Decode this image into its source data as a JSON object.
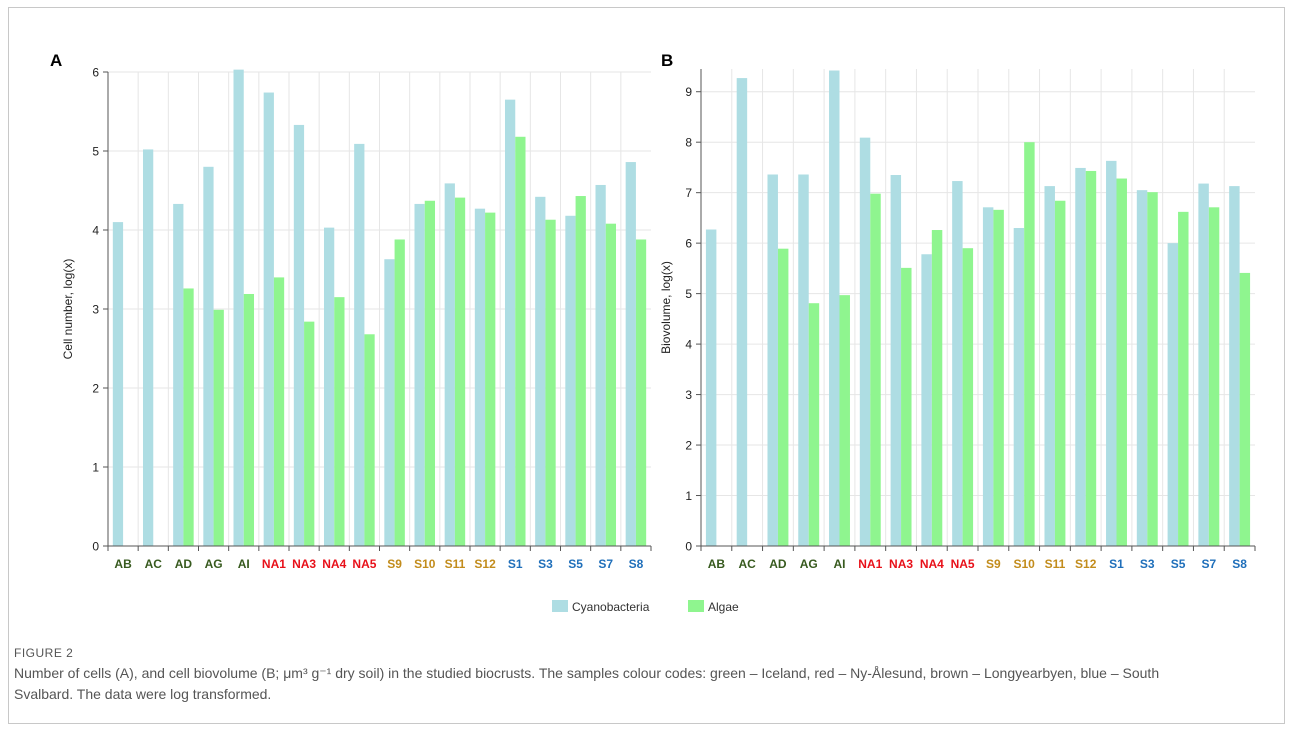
{
  "colors": {
    "cyanobacteria": "#aedde3",
    "algae": "#8ff58f",
    "iceland": "#375a1e",
    "ny_alesund": "#e8111a",
    "longyearbyen": "#c28c1c",
    "south_svalbard": "#1f6fba"
  },
  "legend": {
    "cyanobacteria": "Cyanobacteria",
    "algae": "Algae"
  },
  "caption": {
    "title": "FIGURE 2",
    "text": "Number of cells (A), and cell biovolume (B; μm³ g⁻¹ dry soil) in the studied biocrusts. The samples colour codes: green – Iceland, red – Ny-Ålesund, brown – Longyearbyen, blue – South Svalbard. The data were log transformed."
  },
  "chart_data": [
    {
      "type": "bar",
      "panel": "A",
      "ylabel": "Cell number, log(x)",
      "ylim": [
        0,
        6
      ],
      "yticks": [
        0,
        1,
        2,
        3,
        4,
        5,
        6
      ],
      "grid": true,
      "legend": "bottom-center",
      "categories": [
        "AB",
        "AC",
        "AD",
        "AG",
        "AI",
        "NA1",
        "NA3",
        "NA4",
        "NA5",
        "S9",
        "S10",
        "S11",
        "S12",
        "S1",
        "S3",
        "S5",
        "S7",
        "S8"
      ],
      "category_groups": [
        "iceland",
        "iceland",
        "iceland",
        "iceland",
        "iceland",
        "ny_alesund",
        "ny_alesund",
        "ny_alesund",
        "ny_alesund",
        "longyearbyen",
        "longyearbyen",
        "longyearbyen",
        "longyearbyen",
        "south_svalbard",
        "south_svalbard",
        "south_svalbard",
        "south_svalbard",
        "south_svalbard"
      ],
      "series": [
        {
          "name": "Cyanobacteria",
          "values": [
            4.1,
            5.02,
            4.33,
            4.8,
            6.03,
            5.74,
            5.33,
            4.03,
            5.09,
            3.63,
            4.33,
            4.59,
            4.27,
            5.65,
            4.42,
            4.18,
            4.57,
            4.86
          ]
        },
        {
          "name": "Algae",
          "values": [
            null,
            null,
            3.26,
            2.99,
            3.19,
            3.4,
            2.84,
            3.15,
            2.68,
            3.88,
            4.37,
            4.41,
            4.22,
            5.18,
            4.13,
            4.43,
            4.08,
            3.88
          ]
        }
      ]
    },
    {
      "type": "bar",
      "panel": "B",
      "ylabel": "Biovolume, log(x)",
      "ylim": [
        0,
        9.45
      ],
      "yticks": [
        0,
        1,
        2,
        3,
        4,
        5,
        6,
        7,
        8,
        9
      ],
      "grid": true,
      "legend": "bottom-center",
      "categories": [
        "AB",
        "AC",
        "AD",
        "AG",
        "AI",
        "NA1",
        "NA3",
        "NA4",
        "NA5",
        "S9",
        "S10",
        "S11",
        "S12",
        "S1",
        "S3",
        "S5",
        "S7",
        "S8"
      ],
      "category_groups": [
        "iceland",
        "iceland",
        "iceland",
        "iceland",
        "iceland",
        "ny_alesund",
        "ny_alesund",
        "ny_alesund",
        "ny_alesund",
        "longyearbyen",
        "longyearbyen",
        "longyearbyen",
        "longyearbyen",
        "south_svalbard",
        "south_svalbard",
        "south_svalbard",
        "south_svalbard",
        "south_svalbard"
      ],
      "series": [
        {
          "name": "Cyanobacteria",
          "values": [
            6.27,
            9.27,
            7.36,
            7.36,
            9.42,
            8.09,
            7.35,
            5.78,
            7.23,
            6.71,
            6.3,
            7.13,
            7.49,
            7.63,
            7.05,
            6.0,
            7.18,
            7.13
          ]
        },
        {
          "name": "Algae",
          "values": [
            null,
            null,
            5.89,
            4.81,
            4.97,
            6.98,
            5.51,
            6.26,
            5.9,
            6.66,
            8.0,
            6.84,
            7.43,
            7.28,
            7.01,
            6.62,
            6.71,
            5.41
          ]
        }
      ]
    }
  ]
}
